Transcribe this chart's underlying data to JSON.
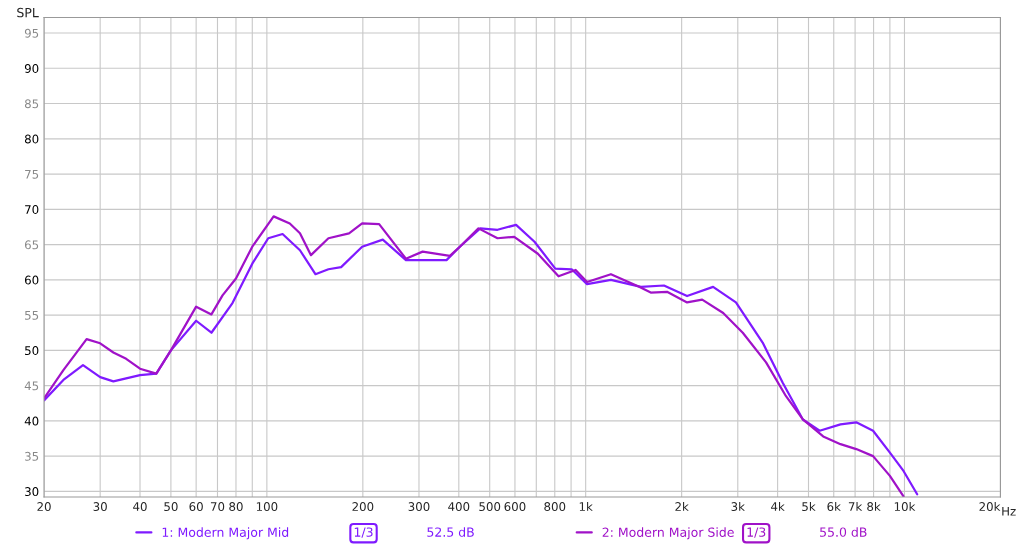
{
  "chart_data": {
    "type": "line",
    "ylabel": "SPL",
    "xlim": [
      20,
      20000
    ],
    "ylim": [
      29.2,
      97.2
    ],
    "log": "x",
    "grid": true,
    "legend": "bottom",
    "line_style": "solid",
    "marker": "none",
    "xticks": [
      20,
      30,
      40,
      50,
      60,
      70,
      80,
      {
        "value": 90,
        "label": null
      },
      100,
      200,
      300,
      400,
      500,
      600,
      {
        "value": 700,
        "label": null
      },
      800,
      {
        "value": 900,
        "label": null
      },
      {
        "value": 1000,
        "label": "1k"
      },
      {
        "value": 2000,
        "label": "2k"
      },
      {
        "value": 3000,
        "label": "3k"
      },
      {
        "value": 4000,
        "label": "4k"
      },
      {
        "value": 5000,
        "label": "5k"
      },
      {
        "value": 6000,
        "label": "6k"
      },
      {
        "value": 7000,
        "label": "7k"
      },
      {
        "value": 8000,
        "label": "8k"
      },
      {
        "value": 9000,
        "label": null
      },
      {
        "value": 10000,
        "label": "10k"
      },
      {
        "value": 20000,
        "label": "20k"
      }
    ],
    "xlabel": "Hz",
    "yticks": [
      30,
      35,
      40,
      45,
      50,
      55,
      60,
      65,
      70,
      75,
      80,
      85,
      90,
      95
    ],
    "series": [
      {
        "name": "1: Modern Major Mid",
        "color": "#7f1aff",
        "x": [
          20,
          23,
          26.5,
          30,
          33,
          40,
          45,
          50,
          60,
          67,
          78,
          90,
          101,
          112,
          127,
          142,
          156,
          171,
          199,
          231,
          273,
          301,
          366,
          403,
          467,
          529,
          605,
          691,
          803,
          904,
          1010,
          1200,
          1490,
          1760,
          2080,
          2510,
          2960,
          3590,
          4150,
          4800,
          5420,
          6300,
          7060,
          7970,
          9000,
          9930,
          10960
        ],
        "values": [
          42.9,
          45.8,
          47.9,
          46.2,
          45.6,
          46.5,
          46.7,
          50,
          54.2,
          52.5,
          56.7,
          62.3,
          65.9,
          66.5,
          64.2,
          60.8,
          61.5,
          61.8,
          64.7,
          65.7,
          62.8,
          62.8,
          62.8,
          64.7,
          67.3,
          67.1,
          67.8,
          65.4,
          61.6,
          61.5,
          59.4,
          60,
          59,
          59.2,
          57.7,
          59,
          56.8,
          51.1,
          45.4,
          40.2,
          38.6,
          39.5,
          39.8,
          38.6,
          35.5,
          32.9,
          29.6
        ]
      },
      {
        "name": "2: Modern Major Side",
        "color": "#a012c8",
        "x": [
          20,
          23,
          27.2,
          30,
          33,
          36.2,
          40,
          45,
          50,
          60,
          67,
          72.6,
          80,
          90,
          105,
          118,
          127,
          137.5,
          156,
          181,
          199,
          225,
          273,
          308,
          375,
          403,
          461,
          529,
          597,
          708,
          822,
          930,
          1010,
          1200,
          1460,
          1600,
          1800,
          2080,
          2320,
          2700,
          3110,
          3680,
          4250,
          4800,
          5560,
          6300,
          7060,
          7970,
          9000,
          9930
        ],
        "values": [
          43.2,
          47.2,
          51.6,
          51,
          49.7,
          48.8,
          47.4,
          46.7,
          50,
          56.2,
          55.1,
          57.8,
          60.2,
          64.7,
          69,
          68,
          66.6,
          63.5,
          65.9,
          66.6,
          68,
          67.9,
          63,
          64,
          63.4,
          64.7,
          67.3,
          65.9,
          66.1,
          63.7,
          60.5,
          61.4,
          59.7,
          60.8,
          59.1,
          58.2,
          58.3,
          56.8,
          57.2,
          55.3,
          52.5,
          48.3,
          43.5,
          40.2,
          37.8,
          36.7,
          36,
          35,
          32.2,
          29.3
        ]
      }
    ],
    "annotations": [
      "1/3",
      "52.5 dB",
      "1/3",
      "55.0 dB"
    ]
  }
}
